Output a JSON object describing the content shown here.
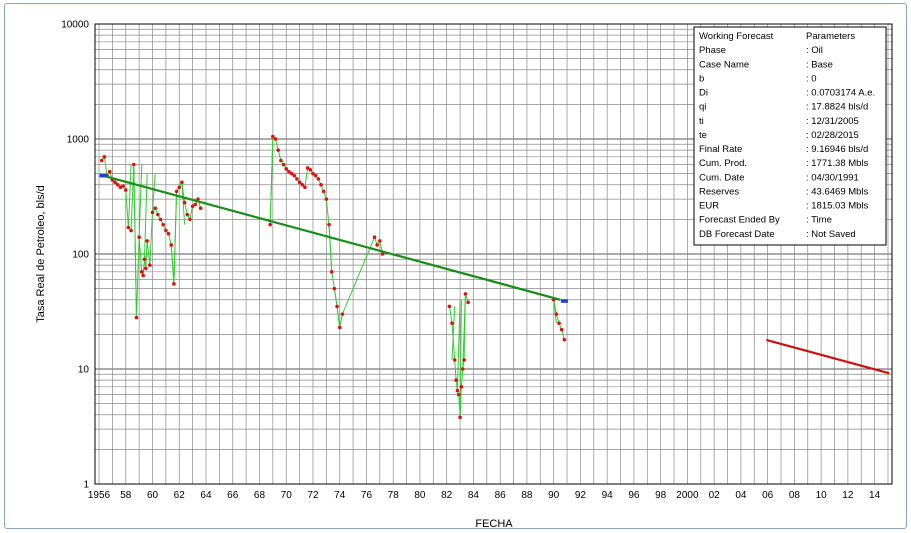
{
  "chart_data": {
    "type": "scatter",
    "xlabel": "FECHA",
    "ylabel": "Tasa Real de Petroleo, bls/d",
    "yscale": "log",
    "ylim": [
      1,
      10000
    ],
    "xlim": [
      1955.7,
      2015.3
    ],
    "grid": true,
    "y_ticks": [
      1,
      10,
      100,
      1000,
      10000
    ],
    "x_ticks": [
      {
        "value": 1956,
        "label": "1956"
      },
      {
        "value": 1958,
        "label": "58"
      },
      {
        "value": 1960,
        "label": "60"
      },
      {
        "value": 1962,
        "label": "62"
      },
      {
        "value": 1964,
        "label": "64"
      },
      {
        "value": 1966,
        "label": "66"
      },
      {
        "value": 1968,
        "label": "68"
      },
      {
        "value": 1970,
        "label": "70"
      },
      {
        "value": 1972,
        "label": "72"
      },
      {
        "value": 1974,
        "label": "74"
      },
      {
        "value": 1976,
        "label": "76"
      },
      {
        "value": 1978,
        "label": "78"
      },
      {
        "value": 1980,
        "label": "80"
      },
      {
        "value": 1982,
        "label": "82"
      },
      {
        "value": 1984,
        "label": "84"
      },
      {
        "value": 1986,
        "label": "86"
      },
      {
        "value": 1988,
        "label": "88"
      },
      {
        "value": 1990,
        "label": "90"
      },
      {
        "value": 1992,
        "label": "92"
      },
      {
        "value": 1994,
        "label": "94"
      },
      {
        "value": 1996,
        "label": "96"
      },
      {
        "value": 1998,
        "label": "98"
      },
      {
        "value": 2000,
        "label": "2000"
      },
      {
        "value": 2002,
        "label": "02"
      },
      {
        "value": 2004,
        "label": "04"
      },
      {
        "value": 2006,
        "label": "06"
      },
      {
        "value": 2008,
        "label": "08"
      },
      {
        "value": 2010,
        "label": "10"
      },
      {
        "value": 2012,
        "label": "12"
      },
      {
        "value": 2014,
        "label": "14"
      }
    ],
    "series": [
      {
        "type": "points",
        "color": "#dd1111",
        "line_color": "#33cc33",
        "x": [
          1956.2,
          1956.4,
          1956.6,
          1956.8,
          1957.0,
          1957.2,
          1957.4,
          1957.6,
          1957.8,
          1958.0,
          1958.2,
          1958.4,
          1958.6,
          1958.8,
          1959.0,
          1959.2,
          1959.3,
          1959.4,
          1959.5,
          1959.6,
          1959.8,
          1960.0,
          1960.2,
          1960.4,
          1960.6,
          1960.8,
          1961.0,
          1961.2,
          1961.4,
          1961.6,
          1961.8,
          1962.0,
          1962.2,
          1962.4,
          1962.6,
          1962.8,
          1963.0,
          1963.2,
          1963.4,
          1963.6,
          1968.8,
          1969.0,
          1969.2,
          1969.4,
          1969.6,
          1969.8,
          1970.0,
          1970.2,
          1970.4,
          1970.6,
          1970.8,
          1971.0,
          1971.2,
          1971.4,
          1971.6,
          1971.8,
          1972.0,
          1972.2,
          1972.4,
          1972.6,
          1972.8,
          1973.0,
          1973.2,
          1973.4,
          1973.6,
          1973.8,
          1974.0,
          1974.2,
          1976.6,
          1976.8,
          1977.0,
          1977.2,
          1982.2,
          1982.4,
          1982.6,
          1982.7,
          1982.8,
          1982.9,
          1983.0,
          1983.1,
          1983.2,
          1983.3,
          1983.4,
          1983.6,
          1990.0,
          1990.2,
          1990.4,
          1990.6,
          1990.8
        ],
        "y": [
          650,
          700,
          480,
          520,
          440,
          420,
          400,
          380,
          390,
          360,
          170,
          160,
          600,
          28,
          140,
          70,
          65,
          90,
          75,
          130,
          80,
          230,
          250,
          220,
          200,
          180,
          160,
          150,
          120,
          55,
          350,
          380,
          420,
          280,
          220,
          200,
          260,
          270,
          300,
          250,
          180,
          1050,
          1000,
          800,
          650,
          600,
          550,
          520,
          500,
          480,
          450,
          420,
          400,
          380,
          560,
          540,
          500,
          480,
          450,
          400,
          350,
          300,
          180,
          70,
          50,
          35,
          23,
          30,
          140,
          120,
          130,
          100,
          35,
          25,
          12,
          8,
          6.5,
          6,
          3.8,
          7,
          10,
          12,
          45,
          38,
          40,
          30,
          25,
          22,
          18
        ],
        "segments": [
          [
            [
              1958.2,
              170
            ],
            [
              1958.4,
              600
            ]
          ],
          [
            [
              1958.6,
              600
            ],
            [
              1958.8,
              28
            ]
          ],
          [
            [
              1959.0,
              140
            ],
            [
              1959.2,
              600
            ]
          ],
          [
            [
              1959.4,
              90
            ],
            [
              1959.6,
              500
            ]
          ],
          [
            [
              1960.0,
              230
            ],
            [
              1960.2,
              500
            ]
          ],
          [
            [
              1961.4,
              120
            ],
            [
              1961.6,
              55
            ]
          ],
          [
            [
              1961.6,
              55
            ],
            [
              1961.8,
              350
            ]
          ],
          [
            [
              1962.2,
              420
            ],
            [
              1962.4,
              180
            ]
          ],
          [
            [
              1968.8,
              180
            ],
            [
              1969.0,
              1050
            ]
          ],
          [
            [
              1973.2,
              180
            ],
            [
              1973.4,
              70
            ]
          ],
          [
            [
              1973.6,
              50
            ],
            [
              1973.8,
              35
            ]
          ],
          [
            [
              1973.8,
              35
            ],
            [
              1974.0,
              23
            ]
          ],
          [
            [
              1982.4,
              12
            ],
            [
              1982.6,
              35
            ]
          ],
          [
            [
              1982.8,
              6.5
            ],
            [
              1983.0,
              40
            ]
          ],
          [
            [
              1983.0,
              3.8
            ],
            [
              1983.1,
              40
            ]
          ],
          [
            [
              1983.2,
              10
            ],
            [
              1983.4,
              45
            ]
          ],
          [
            [
              1990.0,
              40
            ],
            [
              1990.2,
              25
            ]
          ]
        ]
      },
      {
        "type": "line",
        "color": "#1a8c1a",
        "x": [
          1956.3,
          1990.5
        ],
        "y": [
          480,
          40
        ]
      },
      {
        "type": "line",
        "color": "#cc1111",
        "x": [
          2005.9,
          2015.1
        ],
        "y": [
          17.88,
          9.17
        ]
      },
      {
        "type": "markers",
        "color": "#1f3fd6",
        "x": [
          1956.3,
          1990.8
        ],
        "y": [
          480,
          39
        ]
      }
    ]
  },
  "params": {
    "rows": [
      {
        "label": "Working Forecast",
        "value": "Parameters"
      },
      {
        "label": "Phase",
        "value": ": Oil"
      },
      {
        "label": "Case Name",
        "value": ": Base"
      },
      {
        "label": "b",
        "value": ": 0"
      },
      {
        "label": "Di",
        "value": ": 0.0703174 A.e."
      },
      {
        "label": "qi",
        "value": ": 17.8824 bls/d"
      },
      {
        "label": "ti",
        "value": ": 12/31/2005"
      },
      {
        "label": "te",
        "value": ": 02/28/2015"
      },
      {
        "label": "Final Rate",
        "value": ": 9.16946 bls/d"
      },
      {
        "label": "Cum. Prod.",
        "value": ": 1771.38 Mbls"
      },
      {
        "label": "Cum. Date",
        "value": ": 04/30/1991"
      },
      {
        "label": "Reserves",
        "value": ": 43.6469 Mbls"
      },
      {
        "label": "EUR",
        "value": ": 1815.03 Mbls"
      },
      {
        "label": "Forecast Ended By",
        "value": ": Time"
      },
      {
        "label": "DB Forecast Date",
        "value": ": Not Saved"
      }
    ]
  }
}
